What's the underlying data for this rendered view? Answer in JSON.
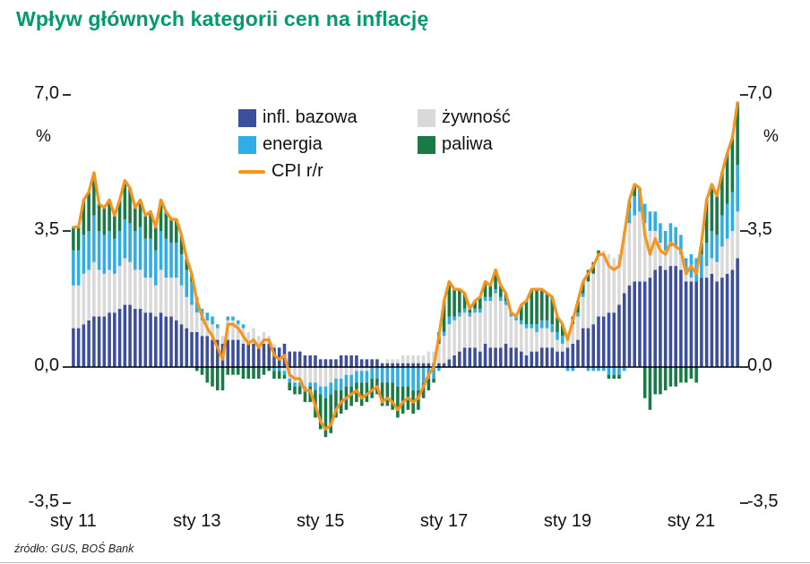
{
  "title": "Wpływ głównych kategorii cen na inflację",
  "source": "źródło: GUS, BOŚ Bank",
  "colors": {
    "title_accent": "#009a6e",
    "core": "#3c4e9c",
    "food": "#d9d9d9",
    "energy": "#2fade4",
    "fuel": "#1a7a46",
    "cpi_line": "#f7941d",
    "axis_text": "#111111"
  },
  "axis": {
    "y_tick_labels": [
      "7,0",
      "3,5",
      "0,0",
      "-3,5"
    ],
    "percent_left": "%",
    "percent_right": "%",
    "x_tick_labels": [
      "sty 11",
      "sty 13",
      "sty 15",
      "sty 17",
      "sty 19",
      "sty 21"
    ]
  },
  "chart_data": {
    "type": "bar",
    "subtype": "stacked-monthly-contributions-with-line",
    "title": "Wpływ głównych kategorii cen na inflację",
    "ylabel": "%",
    "ylim": [
      -3.5,
      7.0
    ],
    "y_ticks": [
      7.0,
      3.5,
      0.0,
      -3.5
    ],
    "y_tick_labels": [
      "7,0",
      "3,5",
      "0,0",
      "-3,5"
    ],
    "x_tick_labels": [
      "sty 11",
      "sty 13",
      "sty 15",
      "sty 17",
      "sty 19",
      "sty 21"
    ],
    "x_tick_positions": [
      0,
      24,
      48,
      72,
      96,
      120
    ],
    "grid": false,
    "legend_position": "top-inside",
    "x": [
      "2011-01",
      "2011-02",
      "2011-03",
      "2011-04",
      "2011-05",
      "2011-06",
      "2011-07",
      "2011-08",
      "2011-09",
      "2011-10",
      "2011-11",
      "2011-12",
      "2012-01",
      "2012-02",
      "2012-03",
      "2012-04",
      "2012-05",
      "2012-06",
      "2012-07",
      "2012-08",
      "2012-09",
      "2012-10",
      "2012-11",
      "2012-12",
      "2013-01",
      "2013-02",
      "2013-03",
      "2013-04",
      "2013-05",
      "2013-06",
      "2013-07",
      "2013-08",
      "2013-09",
      "2013-10",
      "2013-11",
      "2013-12",
      "2014-01",
      "2014-02",
      "2014-03",
      "2014-04",
      "2014-05",
      "2014-06",
      "2014-07",
      "2014-08",
      "2014-09",
      "2014-10",
      "2014-11",
      "2014-12",
      "2015-01",
      "2015-02",
      "2015-03",
      "2015-04",
      "2015-05",
      "2015-06",
      "2015-07",
      "2015-08",
      "2015-09",
      "2015-10",
      "2015-11",
      "2015-12",
      "2016-01",
      "2016-02",
      "2016-03",
      "2016-04",
      "2016-05",
      "2016-06",
      "2016-07",
      "2016-08",
      "2016-09",
      "2016-10",
      "2016-11",
      "2016-12",
      "2017-01",
      "2017-02",
      "2017-03",
      "2017-04",
      "2017-05",
      "2017-06",
      "2017-07",
      "2017-08",
      "2017-09",
      "2017-10",
      "2017-11",
      "2017-12",
      "2018-01",
      "2018-02",
      "2018-03",
      "2018-04",
      "2018-05",
      "2018-06",
      "2018-07",
      "2018-08",
      "2018-09",
      "2018-10",
      "2018-11",
      "2018-12",
      "2019-01",
      "2019-02",
      "2019-03",
      "2019-04",
      "2019-05",
      "2019-06",
      "2019-07",
      "2019-08",
      "2019-09",
      "2019-10",
      "2019-11",
      "2019-12",
      "2020-01",
      "2020-02",
      "2020-03",
      "2020-04",
      "2020-05",
      "2020-06",
      "2020-07",
      "2020-08",
      "2020-09",
      "2020-10",
      "2020-11",
      "2020-12",
      "2021-01",
      "2021-02",
      "2021-03",
      "2021-04",
      "2021-05",
      "2021-06",
      "2021-07",
      "2021-08",
      "2021-09",
      "2021-10"
    ],
    "series": [
      {
        "name": "infl. bazowa",
        "color": "#3c4e9c",
        "values": [
          1.0,
          1.0,
          1.1,
          1.2,
          1.3,
          1.3,
          1.3,
          1.4,
          1.4,
          1.5,
          1.6,
          1.6,
          1.5,
          1.5,
          1.4,
          1.4,
          1.3,
          1.4,
          1.3,
          1.3,
          1.2,
          1.1,
          1.0,
          0.9,
          0.9,
          0.8,
          0.8,
          0.7,
          0.7,
          0.6,
          0.7,
          0.7,
          0.7,
          0.6,
          0.6,
          0.6,
          0.5,
          0.6,
          0.6,
          0.5,
          0.5,
          0.6,
          0.4,
          0.4,
          0.4,
          0.3,
          0.3,
          0.3,
          0.2,
          0.2,
          0.2,
          0.2,
          0.3,
          0.3,
          0.3,
          0.3,
          0.2,
          0.2,
          0.2,
          0.2,
          0.1,
          0.1,
          0.1,
          0.1,
          0.1,
          0.1,
          0.1,
          0.1,
          0.1,
          0.1,
          0.1,
          0.1,
          0.1,
          0.2,
          0.3,
          0.4,
          0.5,
          0.5,
          0.5,
          0.4,
          0.6,
          0.5,
          0.5,
          0.5,
          0.6,
          0.5,
          0.5,
          0.4,
          0.3,
          0.4,
          0.4,
          0.5,
          0.5,
          0.5,
          0.4,
          0.4,
          0.5,
          0.6,
          0.7,
          1.0,
          1.0,
          1.1,
          1.3,
          1.3,
          1.4,
          1.4,
          1.6,
          1.9,
          2.1,
          2.2,
          2.2,
          2.2,
          2.3,
          2.5,
          2.6,
          2.5,
          2.6,
          2.6,
          2.5,
          2.2,
          2.2,
          2.2,
          2.3,
          2.3,
          2.4,
          2.2,
          2.3,
          2.4,
          2.5,
          2.8
        ]
      },
      {
        "name": "żywność",
        "color": "#d9d9d9",
        "values": [
          1.1,
          1.1,
          1.3,
          1.3,
          1.4,
          1.2,
          1.1,
          1.1,
          1.0,
          1.1,
          1.2,
          1.1,
          1.0,
          1.0,
          0.9,
          0.9,
          0.8,
          1.1,
          1.0,
          1.0,
          1.1,
          1.0,
          0.8,
          0.7,
          0.5,
          0.4,
          0.4,
          0.4,
          0.3,
          0.2,
          0.5,
          0.5,
          0.4,
          0.4,
          0.3,
          0.4,
          0.3,
          0.3,
          0.2,
          0.1,
          0.0,
          -0.1,
          -0.3,
          -0.4,
          -0.4,
          -0.5,
          -0.4,
          -0.4,
          -0.5,
          -0.5,
          -0.4,
          -0.3,
          -0.3,
          -0.2,
          -0.2,
          -0.1,
          -0.1,
          -0.1,
          0.0,
          0.0,
          0.0,
          0.1,
          0.1,
          0.1,
          0.2,
          0.2,
          0.2,
          0.2,
          0.2,
          0.3,
          0.3,
          0.5,
          0.7,
          0.9,
          0.9,
          0.9,
          0.9,
          0.8,
          0.9,
          1.0,
          1.1,
          1.2,
          1.4,
          1.2,
          1.0,
          0.8,
          0.7,
          0.7,
          0.7,
          0.6,
          0.5,
          0.5,
          0.5,
          0.4,
          0.3,
          0.2,
          0.2,
          0.5,
          0.6,
          0.8,
          1.2,
          1.3,
          1.6,
          1.7,
          1.5,
          1.4,
          1.3,
          1.6,
          1.6,
          1.7,
          1.8,
          1.5,
          1.2,
          1.0,
          0.6,
          0.5,
          0.5,
          0.5,
          0.4,
          0.2,
          0.1,
          0.0,
          0.0,
          0.3,
          0.4,
          0.5,
          0.8,
          0.9,
          1.0,
          1.2
        ]
      },
      {
        "name": "energia",
        "color": "#2fade4",
        "values": [
          0.9,
          0.9,
          1.0,
          1.0,
          1.2,
          1.0,
          1.0,
          1.0,
          0.9,
          0.9,
          1.0,
          1.0,
          1.0,
          1.1,
          1.0,
          1.0,
          0.9,
          1.0,
          1.0,
          0.9,
          0.9,
          0.8,
          0.7,
          0.6,
          0.4,
          0.3,
          0.2,
          0.2,
          0.1,
          0.0,
          0.1,
          0.1,
          0.1,
          0.1,
          0.0,
          0.0,
          0.0,
          0.0,
          0.0,
          -0.1,
          -0.1,
          -0.1,
          -0.1,
          -0.1,
          -0.1,
          -0.1,
          -0.1,
          -0.2,
          -0.2,
          -0.3,
          -0.3,
          -0.3,
          -0.3,
          -0.3,
          -0.3,
          -0.3,
          -0.3,
          -0.3,
          -0.3,
          -0.3,
          -0.4,
          -0.4,
          -0.4,
          -0.5,
          -0.5,
          -0.5,
          -0.6,
          -0.6,
          -0.4,
          -0.3,
          -0.3,
          -0.1,
          0.1,
          0.2,
          0.1,
          0.1,
          0.1,
          0.1,
          0.1,
          0.1,
          0.1,
          0.1,
          0.1,
          0.1,
          0.1,
          0.1,
          0.1,
          0.1,
          0.1,
          0.1,
          0.2,
          0.2,
          0.2,
          0.2,
          0.2,
          0.2,
          -0.1,
          -0.1,
          0.1,
          0.1,
          -0.1,
          -0.1,
          -0.1,
          -0.1,
          -0.2,
          -0.2,
          -0.2,
          -0.1,
          0.4,
          0.5,
          0.5,
          0.5,
          0.5,
          0.5,
          0.5,
          0.5,
          0.6,
          0.5,
          0.5,
          0.4,
          0.6,
          0.6,
          0.6,
          0.6,
          0.7,
          0.7,
          0.8,
          0.9,
          1.0,
          1.2
        ]
      },
      {
        "name": "paliwa",
        "color": "#1a7a46",
        "values": [
          0.6,
          0.6,
          0.9,
          1.0,
          1.1,
          0.7,
          0.7,
          0.8,
          0.6,
          0.8,
          1.0,
          0.9,
          0.6,
          0.7,
          0.6,
          0.7,
          0.6,
          0.8,
          0.7,
          0.6,
          0.6,
          0.5,
          0.3,
          0.2,
          -0.1,
          -0.2,
          -0.4,
          -0.5,
          -0.6,
          -0.6,
          -0.2,
          -0.2,
          -0.2,
          -0.3,
          -0.3,
          -0.3,
          -0.3,
          -0.2,
          -0.1,
          -0.2,
          -0.2,
          -0.1,
          -0.2,
          -0.2,
          -0.2,
          -0.3,
          -0.4,
          -0.7,
          -0.9,
          -1.0,
          -1.0,
          -0.7,
          -0.6,
          -0.6,
          -0.5,
          -0.5,
          -0.6,
          -0.5,
          -0.5,
          -0.4,
          -0.6,
          -0.6,
          -0.7,
          -0.8,
          -0.7,
          -0.6,
          -0.6,
          -0.5,
          -0.4,
          -0.3,
          -0.1,
          0.3,
          0.8,
          0.9,
          0.7,
          0.6,
          0.4,
          0.1,
          0.2,
          0.3,
          0.4,
          0.3,
          0.5,
          0.3,
          0.2,
          0.0,
          0.0,
          0.4,
          0.6,
          0.9,
          0.9,
          0.8,
          0.7,
          0.7,
          0.4,
          0.3,
          0.1,
          0.2,
          0.3,
          0.3,
          0.3,
          0.3,
          0.1,
          0.0,
          -0.1,
          -0.1,
          -0.1,
          0.0,
          0.2,
          0.3,
          0.1,
          -0.8,
          -1.1,
          -0.7,
          -0.7,
          -0.6,
          -0.5,
          -0.5,
          -0.4,
          -0.4,
          -0.3,
          -0.4,
          0.3,
          1.1,
          1.2,
          1.0,
          1.1,
          1.3,
          1.4,
          1.6
        ]
      }
    ],
    "line": {
      "name": "CPI r/r",
      "color": "#f7941d",
      "values": [
        3.6,
        3.6,
        4.3,
        4.5,
        5.0,
        4.2,
        4.1,
        4.3,
        3.9,
        4.3,
        4.8,
        4.6,
        4.1,
        4.3,
        3.9,
        4.0,
        3.6,
        4.3,
        4.0,
        3.8,
        3.8,
        3.4,
        2.8,
        2.4,
        1.7,
        1.3,
        1.0,
        0.8,
        0.5,
        0.2,
        1.1,
        1.1,
        1.0,
        0.8,
        0.6,
        0.7,
        0.5,
        0.7,
        0.7,
        0.3,
        0.2,
        0.3,
        -0.2,
        -0.3,
        -0.3,
        -0.6,
        -0.6,
        -1.0,
        -1.4,
        -1.6,
        -1.5,
        -1.1,
        -0.9,
        -0.8,
        -0.7,
        -0.6,
        -0.8,
        -0.7,
        -0.6,
        -0.5,
        -0.9,
        -0.8,
        -0.9,
        -1.1,
        -0.9,
        -0.8,
        -0.9,
        -0.8,
        -0.5,
        -0.2,
        0.0,
        0.8,
        1.7,
        2.2,
        2.0,
        2.0,
        1.9,
        1.5,
        1.7,
        1.8,
        2.2,
        2.1,
        2.5,
        2.1,
        1.9,
        1.4,
        1.3,
        1.6,
        1.7,
        2.0,
        2.0,
        2.0,
        1.9,
        1.8,
        1.3,
        1.1,
        0.7,
        1.2,
        1.7,
        2.2,
        2.4,
        2.6,
        2.9,
        2.9,
        2.6,
        2.5,
        2.6,
        3.4,
        4.3,
        4.7,
        4.6,
        3.4,
        2.9,
        3.3,
        3.0,
        2.9,
        3.2,
        3.1,
        3.0,
        2.4,
        2.6,
        2.4,
        3.2,
        4.3,
        4.7,
        4.4,
        5.0,
        5.5,
        5.9,
        6.8
      ]
    }
  }
}
